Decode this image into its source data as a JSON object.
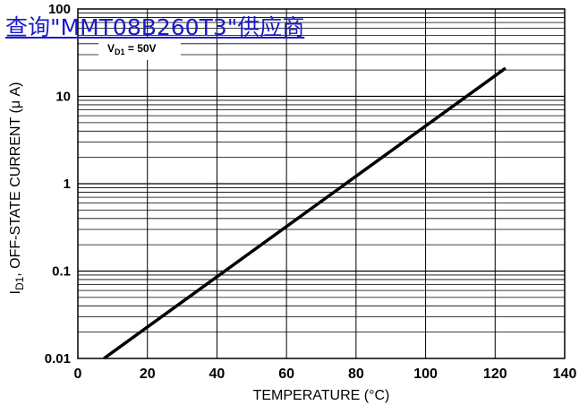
{
  "overlay_link": {
    "text": "查询\"MMT08B260T3\"供应商"
  },
  "chart_data": {
    "type": "line",
    "xlabel": "TEMPERATURE (°C)",
    "ylabel_main": "I",
    "ylabel_sub": "D1",
    "ylabel_rest": ", OFF-STATE CURRENT (μ A)",
    "annotation": {
      "main": "V",
      "sub": "D1",
      "rest": " = 50V"
    },
    "x_ticks": [
      0,
      20,
      40,
      60,
      80,
      100,
      120,
      140
    ],
    "x_tick_labels": [
      "0",
      "20",
      "40",
      "60",
      "80",
      "100",
      "120",
      "140"
    ],
    "y_ticks": [
      0.01,
      0.1,
      1,
      10,
      100
    ],
    "y_tick_labels": [
      "0.01",
      "0.1",
      "1",
      "10",
      "100"
    ],
    "xlim": [
      0,
      140
    ],
    "ylim": [
      0.01,
      100
    ],
    "y_scale": "log",
    "grid": true,
    "series": [
      {
        "x": [
          7.5,
          123
        ],
        "y": [
          0.01,
          21
        ]
      }
    ]
  }
}
